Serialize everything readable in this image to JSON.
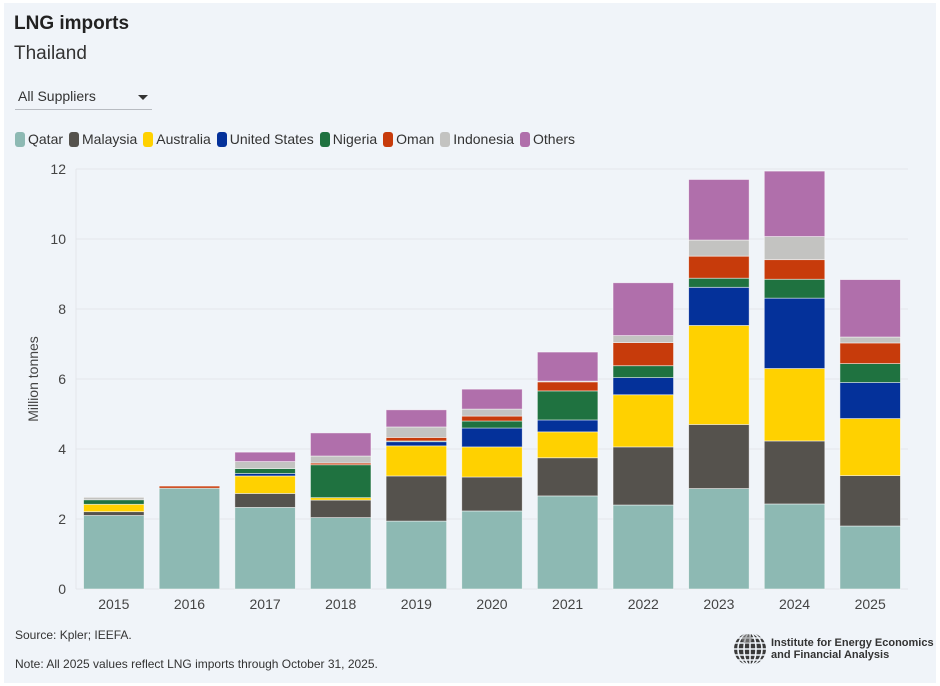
{
  "header": {
    "title": "LNG imports",
    "subtitle": "Thailand"
  },
  "filter": {
    "selected": "All Suppliers"
  },
  "footer": {
    "source": "Source: Kpler; IEEFA.",
    "note": "Note: All 2025 values reflect LNG imports through October 31, 2025.",
    "logo_line1": "Institute for Energy Economics",
    "logo_line2": "and Financial Analysis"
  },
  "chart_data": {
    "type": "bar",
    "stacked": true,
    "title": "LNG imports",
    "subtitle": "Thailand",
    "xlabel": "",
    "ylabel": "Million tonnes",
    "ylim": [
      0,
      12
    ],
    "yticks": [
      0,
      2,
      4,
      6,
      8,
      10,
      12
    ],
    "grid": true,
    "legend_position": "top-left",
    "categories": [
      "2015",
      "2016",
      "2017",
      "2018",
      "2019",
      "2020",
      "2021",
      "2022",
      "2023",
      "2024",
      "2025"
    ],
    "series": [
      {
        "name": "Qatar",
        "color": "#8db9b3",
        "values": [
          2.1,
          2.88,
          2.33,
          2.04,
          1.94,
          2.23,
          2.66,
          2.4,
          2.87,
          2.43,
          1.8
        ]
      },
      {
        "name": "Malaysia",
        "color": "#55524d",
        "values": [
          0.11,
          0,
          0.4,
          0.5,
          1.29,
          0.97,
          1.09,
          1.66,
          1.83,
          1.8,
          1.44
        ]
      },
      {
        "name": "Australia",
        "color": "#ffd100",
        "values": [
          0.21,
          0,
          0.5,
          0.07,
          0.86,
          0.86,
          0.74,
          1.49,
          2.83,
          2.07,
          1.63
        ]
      },
      {
        "name": "United States",
        "color": "#04319a",
        "values": [
          0,
          0,
          0.07,
          0,
          0.12,
          0.54,
          0.34,
          0.49,
          1.09,
          2.01,
          1.03
        ]
      },
      {
        "name": "Nigeria",
        "color": "#1f7240",
        "values": [
          0.13,
          0,
          0.14,
          0.94,
          0.02,
          0.2,
          0.83,
          0.34,
          0.26,
          0.54,
          0.54
        ]
      },
      {
        "name": "Oman",
        "color": "#c73b0b",
        "values": [
          0,
          0.06,
          0,
          0.05,
          0.1,
          0.14,
          0.26,
          0.66,
          0.63,
          0.56,
          0.59
        ]
      },
      {
        "name": "Indonesia",
        "color": "#c3c3c1",
        "values": [
          0.07,
          0,
          0.2,
          0.2,
          0.3,
          0.2,
          0.02,
          0.2,
          0.46,
          0.66,
          0.17
        ]
      },
      {
        "name": "Others",
        "color": "#b06fab",
        "values": [
          0,
          0,
          0.27,
          0.66,
          0.49,
          0.57,
          0.83,
          1.51,
          1.73,
          1.87,
          1.64
        ]
      }
    ]
  }
}
